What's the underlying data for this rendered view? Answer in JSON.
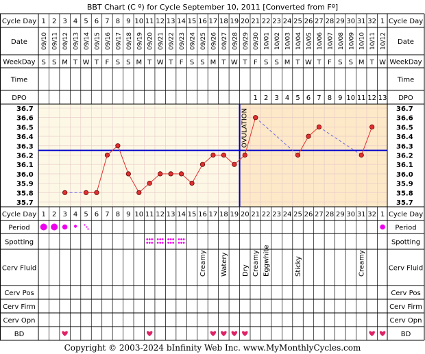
{
  "title": "BBT Chart (C º) for Cycle September 10, 2011  [Converted from Fº]",
  "copyright": "Copyright © 2003-2024 bInfinity Web Inc.    www.MyMonthlyCycles.com",
  "row_labels": {
    "cycle_day": "Cycle Day",
    "date": "Date",
    "weekday": "WeekDay",
    "time": "Time",
    "dpo": "DPO",
    "period": "Period",
    "spotting": "Spotting",
    "cerv_fluid": "Cerv Fluid",
    "cerv_pos": "Cerv Pos",
    "cerv_firm": "Cerv Firm",
    "cerv_opn": "Cerv Opn",
    "bd": "BD"
  },
  "ovulation_label": "OVULATION",
  "colors": {
    "pre_ovulation_bg": "#fdf8e6",
    "post_ovulation_bg": "#fde8c8",
    "grid": "#e6c8c8",
    "coverline": "#0000cc",
    "temp_line": "#e03030",
    "period_dot": "#ee00ee",
    "bd_heart": "#dd2266"
  },
  "chart_data": {
    "type": "line",
    "cycle_days": [
      "1",
      "2",
      "3",
      "4",
      "5",
      "6",
      "7",
      "8",
      "9",
      "10",
      "11",
      "12",
      "13",
      "14",
      "15",
      "16",
      "17",
      "18",
      "19",
      "20",
      "21",
      "22",
      "23",
      "24",
      "25",
      "26",
      "27",
      "28",
      "29",
      "30",
      "31",
      "32",
      "1"
    ],
    "dates": [
      "09/10",
      "09/11",
      "09/12",
      "09/13",
      "09/14",
      "09/15",
      "09/16",
      "09/17",
      "09/18",
      "09/19",
      "09/20",
      "09/21",
      "09/22",
      "09/23",
      "09/24",
      "09/25",
      "09/26",
      "09/27",
      "09/28",
      "09/29",
      "09/30",
      "10/01",
      "10/02",
      "10/03",
      "10/04",
      "10/05",
      "10/06",
      "10/07",
      "10/08",
      "10/09",
      "10/10",
      "10/11",
      "10/12"
    ],
    "weekdays": [
      "S",
      "S",
      "M",
      "T",
      "W",
      "T",
      "F",
      "S",
      "S",
      "M",
      "T",
      "W",
      "T",
      "F",
      "S",
      "S",
      "M",
      "T",
      "W",
      "T",
      "F",
      "S",
      "S",
      "M",
      "T",
      "W",
      "T",
      "F",
      "S",
      "S",
      "M",
      "T",
      "W"
    ],
    "dpo": [
      "",
      "",
      "",
      "",
      "",
      "",
      "",
      "",
      "",
      "",
      "",
      "",
      "",
      "",
      "",
      "",
      "",
      "",
      "",
      "",
      "1",
      "2",
      "3",
      "4",
      "5",
      "6",
      "7",
      "8",
      "9",
      "10",
      "11",
      "12",
      "13"
    ],
    "y_ticks": [
      "36.7",
      "36.6",
      "36.5",
      "36.4",
      "36.3",
      "36.2",
      "36.1",
      "36.0",
      "35.9",
      "35.8",
      "35.7"
    ],
    "ylim": [
      35.7,
      36.7
    ],
    "temperatures": [
      null,
      null,
      35.8,
      null,
      35.8,
      35.8,
      36.2,
      36.3,
      36.0,
      35.8,
      35.9,
      36.0,
      36.0,
      36.0,
      35.9,
      36.1,
      36.2,
      36.2,
      36.1,
      36.2,
      36.6,
      null,
      null,
      null,
      36.2,
      36.4,
      36.5,
      null,
      null,
      null,
      36.2,
      36.5,
      null
    ],
    "coverline": 36.25,
    "ovulation_day": 19,
    "period": [
      "heavy",
      "heavy",
      "medium",
      "light",
      "spotting",
      "",
      "",
      "",
      "",
      "",
      "",
      "",
      "",
      "",
      "",
      "",
      "",
      "",
      "",
      "",
      "",
      "",
      "",
      "",
      "",
      "",
      "",
      "",
      "",
      "",
      "",
      "",
      "medium"
    ],
    "spotting": [
      "",
      "",
      "",
      "",
      "",
      "",
      "",
      "",
      "",
      "",
      "spot",
      "spot",
      "spot",
      "spot",
      "",
      "",
      "",
      "",
      "",
      "",
      "",
      "",
      "",
      "",
      "",
      "",
      "",
      "",
      "",
      "",
      "",
      "",
      ""
    ],
    "cerv_fluid": [
      "",
      "",
      "",
      "",
      "",
      "",
      "",
      "",
      "",
      "",
      "",
      "",
      "",
      "",
      "",
      "Creamy",
      "",
      "Watery",
      "",
      "Dry",
      "Creamy",
      "Eggwhite",
      "",
      "",
      "Sticky",
      "",
      "",
      "",
      "",
      "",
      "Creamy",
      "",
      ""
    ],
    "bd": [
      false,
      false,
      true,
      false,
      false,
      false,
      false,
      false,
      false,
      false,
      true,
      false,
      false,
      false,
      false,
      false,
      true,
      true,
      true,
      true,
      false,
      false,
      false,
      false,
      false,
      false,
      false,
      false,
      false,
      false,
      false,
      true,
      true
    ]
  }
}
